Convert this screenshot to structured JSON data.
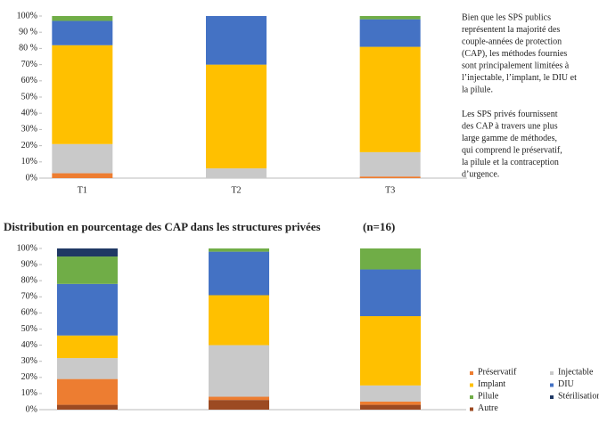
{
  "chart_data": [
    {
      "type": "bar",
      "stacked": true,
      "grid": false,
      "categories": [
        "T1",
        "T2",
        "T3"
      ],
      "ylim": [
        0,
        100
      ],
      "yticks": [
        {
          "value": 0,
          "label": "0%"
        },
        {
          "value": 10,
          "label": "10%"
        },
        {
          "value": 20,
          "label": "20%"
        },
        {
          "value": 30,
          "label": "30%"
        },
        {
          "value": 40,
          "label": "40%"
        },
        {
          "value": 50,
          "label": "50%"
        },
        {
          "value": 60,
          "label": "60%"
        },
        {
          "value": 70,
          "label": "70%"
        },
        {
          "value": 80,
          "label": "80 %"
        },
        {
          "value": 90,
          "label": "90 %"
        },
        {
          "value": 100,
          "label": "100%"
        }
      ],
      "series": [
        {
          "color": "#9c4a22",
          "values": [
            0,
            0,
            0
          ]
        },
        {
          "color": "#ed7d31",
          "values": [
            3,
            0,
            1
          ]
        },
        {
          "color": "#c9c9c9",
          "values": [
            18,
            6,
            15
          ]
        },
        {
          "color": "#ffc000",
          "values": [
            61,
            64,
            65
          ]
        },
        {
          "color": "#4472c4",
          "values": [
            15,
            30,
            17
          ]
        },
        {
          "color": "#70ad47",
          "values": [
            3,
            0,
            2
          ]
        },
        {
          "color": "#1f3864",
          "values": [
            0,
            0,
            0
          ]
        }
      ]
    },
    {
      "type": "bar",
      "stacked": true,
      "grid": false,
      "legend": "lower right",
      "title": "Distribution en pourcentage des CAP dans les structures privées",
      "subtitle": "(n=16)",
      "categories": [
        null,
        null,
        null
      ],
      "ylim": [
        0,
        100
      ],
      "yticks": [
        {
          "value": 0,
          "label": "0%"
        },
        {
          "value": 10,
          "label": "10%"
        },
        {
          "value": 20,
          "label": "20%"
        },
        {
          "value": 30,
          "label": "30%"
        },
        {
          "value": 40,
          "label": "40%"
        },
        {
          "value": 50,
          "label": "50%"
        },
        {
          "value": 60,
          "label": "60%"
        },
        {
          "value": 70,
          "label": "70%"
        },
        {
          "value": 80,
          "label": "80%"
        },
        {
          "value": 90,
          "label": "90%"
        },
        {
          "value": 100,
          "label": "100%"
        }
      ],
      "series": [
        {
          "name": "Autre",
          "color": "#9c4a22",
          "values": [
            3,
            6,
            3
          ]
        },
        {
          "name": "Préservatif",
          "color": "#ed7d31",
          "values": [
            16,
            2,
            2
          ]
        },
        {
          "name": "Injectable",
          "color": "#c9c9c9",
          "values": [
            13,
            32,
            10
          ]
        },
        {
          "name": "Implant",
          "color": "#ffc000",
          "values": [
            14,
            31,
            43
          ]
        },
        {
          "name": "DIU",
          "color": "#4472c4",
          "values": [
            32,
            27,
            29
          ]
        },
        {
          "name": "Pilule",
          "color": "#70ad47",
          "values": [
            17,
            2,
            13
          ]
        },
        {
          "name": "Stérilisation",
          "color": "#1f3864",
          "values": [
            5,
            0,
            0
          ]
        }
      ]
    }
  ],
  "side_text": [
    [
      "Bien que les  SPS publics",
      "représentent la majorité des",
      "couple-années de protection",
      "(CAP), les méthodes fournies",
      "sont principalement limitées à",
      "l’injectable, l’implant, le DIU et",
      "la pilule."
    ],
    [
      "Les SPS privés  fournissent",
      "des CAP à travers une plus",
      "large gamme de méthodes,",
      "qui comprend le préservatif,",
      "la pilule et la contraception",
      "d’urgence."
    ]
  ]
}
